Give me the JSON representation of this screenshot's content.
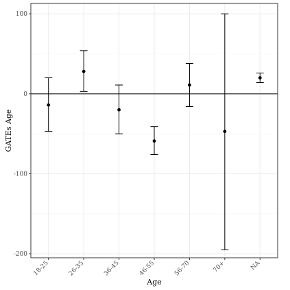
{
  "chart_data": {
    "type": "scatter",
    "title": "",
    "xlabel": "Age",
    "ylabel": "GATEs Age",
    "categories": [
      "18-25",
      "26-35",
      "36-45",
      "46-55",
      "56-70",
      "70+",
      "NA"
    ],
    "series": [
      {
        "estimate": [
          -14,
          28,
          -20,
          -59,
          11,
          -47,
          20
        ],
        "lower": [
          -47,
          3,
          -50,
          -76,
          -16,
          -195,
          14
        ],
        "upper": [
          20,
          54,
          11,
          -41,
          38,
          100,
          26
        ]
      }
    ],
    "ylim": [
      -205,
      113
    ],
    "yticks": [
      -200,
      -100,
      0,
      100
    ],
    "reference_line_y": 0,
    "grid": true,
    "legend": "none",
    "colors": {
      "points": "#000000",
      "grid": "#ebebeb",
      "panel_border": "#333333"
    }
  }
}
